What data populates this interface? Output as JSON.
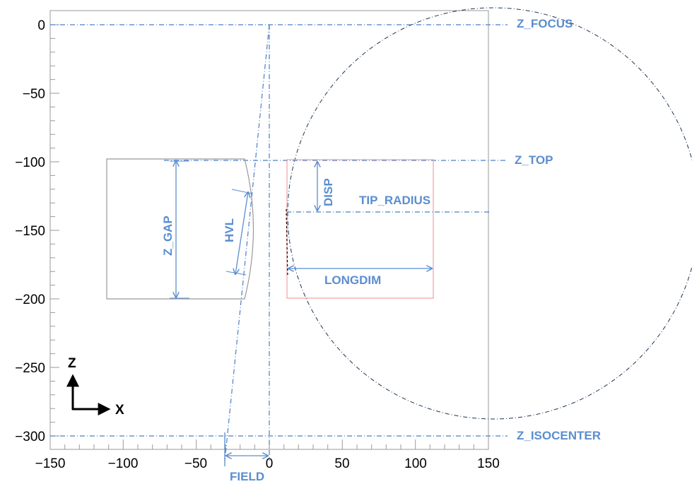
{
  "axes": {
    "x_ticks": [
      "−150",
      "−100",
      "−50",
      "0",
      "50",
      "100",
      "150"
    ],
    "z_ticks": [
      "0",
      "−50",
      "−100",
      "−150",
      "−200",
      "−250",
      "−300"
    ]
  },
  "labels": {
    "z_focus": "Z_FOCUS",
    "z_top": "Z_TOP",
    "z_isocenter": "Z_ISOCENTER",
    "tip_radius": "TIP_RADIUS",
    "longdim": "LONGDIM",
    "disp": "DISP",
    "z_gap": "Z_GAP",
    "hvl": "HVL",
    "field": "FIELD"
  },
  "coord_axes": {
    "z": "Z",
    "x": "X"
  },
  "colors": {
    "annotation": "#5b8ed0",
    "guide_line": "#4a7fc8",
    "leaf_outline": "#999999",
    "tip_box": "#f0a0a0",
    "circle": "#1f3553",
    "frame": "#9a9a9a"
  }
}
